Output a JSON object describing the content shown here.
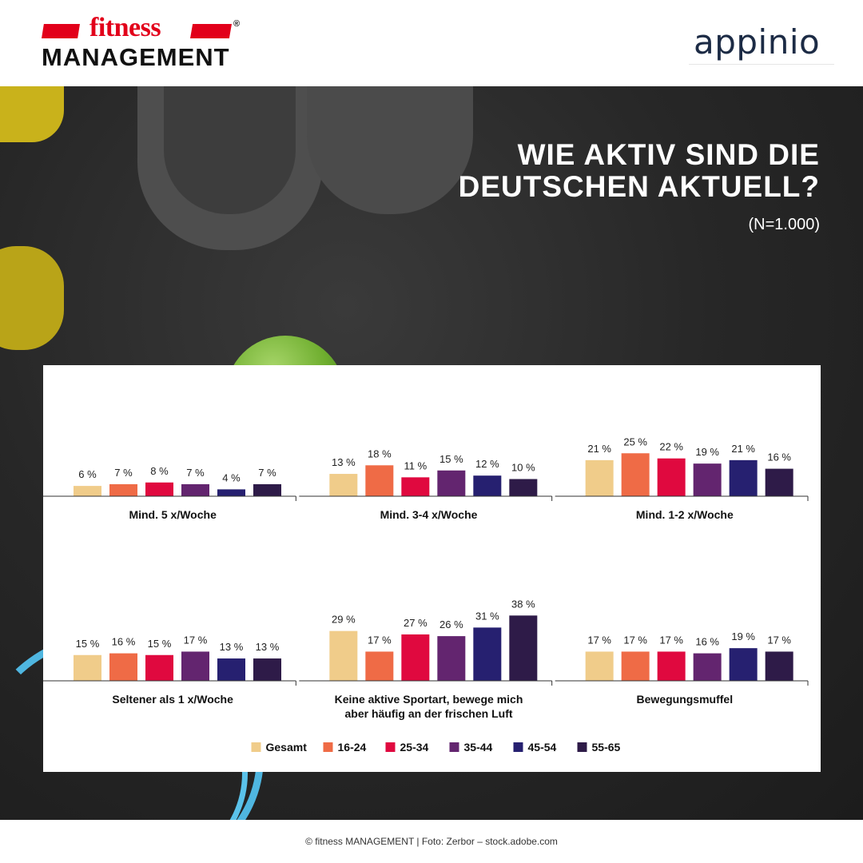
{
  "header": {
    "brand_top": "fitness",
    "brand_bottom": "MANAGEMENT",
    "brand_mark": "®",
    "partner": "appinio"
  },
  "title_line1": "WIE AKTIV SIND DIE",
  "title_line2": "DEUTSCHEN AKTUELL?",
  "sample": "(N=1.000)",
  "footer": "© fitness MANAGEMENT  |  Foto: Zerbor – stock.adobe.com",
  "chart_data": {
    "type": "bar",
    "value_suffix": " %",
    "legend_position": "bottom",
    "series": [
      {
        "name": "Gesamt",
        "color": "#f0cc8a"
      },
      {
        "name": "16-24",
        "color": "#ef6b46"
      },
      {
        "name": "25-34",
        "color": "#e0093f"
      },
      {
        "name": "35-44",
        "color": "#63256f"
      },
      {
        "name": "45-54",
        "color": "#262070"
      },
      {
        "name": "55-65",
        "color": "#2e1b48"
      }
    ],
    "groups": [
      {
        "label": [
          "Mind. 5 x/Woche"
        ],
        "values": [
          6,
          7,
          8,
          7,
          4,
          7
        ]
      },
      {
        "label": [
          "Mind. 3-4 x/Woche"
        ],
        "values": [
          13,
          18,
          11,
          15,
          12,
          10
        ]
      },
      {
        "label": [
          "Mind. 1-2 x/Woche"
        ],
        "values": [
          21,
          25,
          22,
          19,
          21,
          16
        ]
      },
      {
        "label": [
          "Seltener als 1 x/Woche"
        ],
        "values": [
          15,
          16,
          15,
          17,
          13,
          13
        ]
      },
      {
        "label": [
          "Keine aktive Sportart, bewege mich",
          "aber häufig an der frischen Luft"
        ],
        "values": [
          29,
          17,
          27,
          26,
          31,
          38
        ]
      },
      {
        "label": [
          "Bewegungsmuffel"
        ],
        "values": [
          17,
          17,
          17,
          16,
          19,
          17
        ]
      }
    ]
  }
}
